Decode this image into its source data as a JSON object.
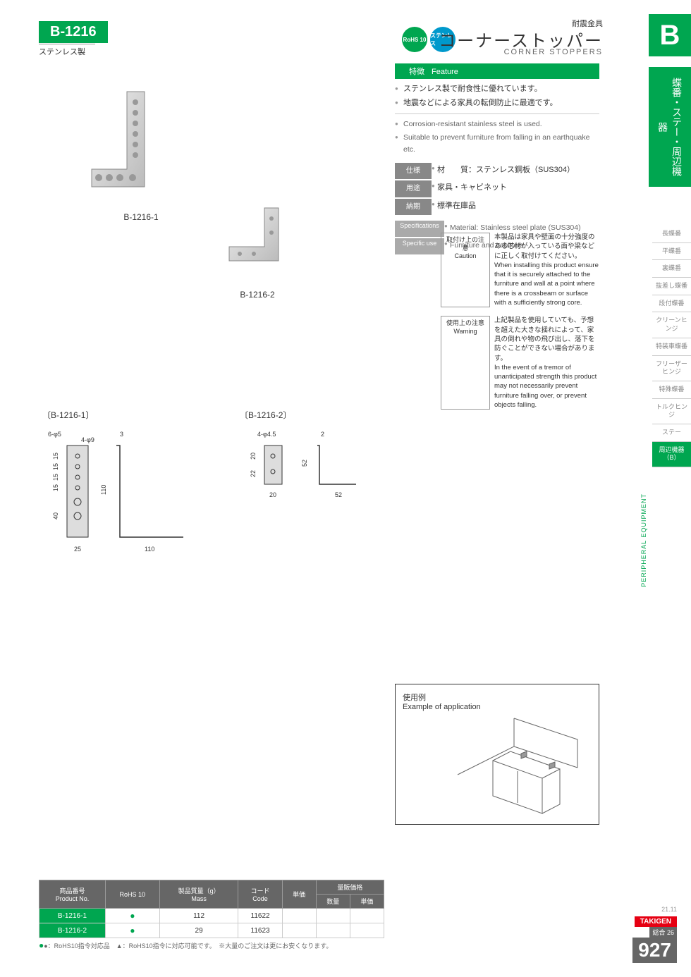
{
  "header": {
    "code": "B-1216",
    "sub": "ステンレス製",
    "category": "耐震金具",
    "title_jp": "コーナーストッパー",
    "title_en": "CORNER STOPPERS",
    "badge_rohs": "RoHS 10",
    "badge_stn": "ステンレス"
  },
  "side": {
    "tab": "B",
    "label": "蝶番・ステー・周辺機器",
    "nav": [
      "長蝶番",
      "平蝶番",
      "裏蝶番",
      "抜差し蝶番",
      "段付蝶番",
      "クリーンヒンジ",
      "特装車蝶番",
      "フリーザーヒンジ",
      "特殊蝶番",
      "トルクヒンジ",
      "ステー",
      "周辺機器（B）"
    ],
    "nav_active": 11,
    "vert": "PERIPHERAL EQUIPMENT"
  },
  "feature": {
    "hdr_jp": "特徴",
    "hdr_en": "Feature",
    "bullets_jp": [
      "ステンレス製で耐食性に優れています。",
      "地震などによる家具の転倒防止に最適です。"
    ],
    "bullets_en": [
      "Corrosion-resistant stainless steel is used.",
      "Suitable to prevent furniture from falling in an earthquake etc."
    ]
  },
  "spec": {
    "rows": [
      {
        "lbl": "仕様",
        "val": "材　　質：ステンレス鋼板（SUS304）"
      },
      {
        "lbl": "用途",
        "val": "家具・キャビネット"
      },
      {
        "lbl": "納期",
        "val": "標準在庫品"
      }
    ],
    "rows_en": [
      {
        "lbl": "Specifications",
        "val": "Material: Stainless steel plate (SUS304)"
      },
      {
        "lbl": "Specific use",
        "val": "Furniture and cabinets"
      }
    ]
  },
  "products": {
    "p1": "B-1216-1",
    "p2": "B-1216-2"
  },
  "caution": {
    "c1_lbl": "取付け上の注意\nCaution",
    "c1_jp": "本製品は家具や壁面の十分強度のある芯材が入っている面や梁などに正しく取付けてください。",
    "c1_en": "When installing this product ensure that it is securely attached to the furniture and wall at a point where there is a crossbeam or surface with a sufficiently strong core.",
    "c2_lbl": "使用上の注意\nWarning",
    "c2_jp": "上記製品を使用していても、予想を超えた大きな揺れによって、家具の倒れや物の飛び出し、落下を防ぐことができない場合があります。",
    "c2_en": "In the event of a tremor of unanticipated strength this product may not necessarily prevent furniture falling over, or prevent objects falling."
  },
  "drawings": {
    "d1_title": "〔B-1216-1〕",
    "d2_title": "〔B-1216-2〕",
    "d1": {
      "holes1": "6-φ5",
      "holes2": "4-φ9",
      "t": "3",
      "h": "110",
      "w": "110",
      "bw": "25",
      "sp": [
        "15",
        "15",
        "15",
        "15",
        "40"
      ]
    },
    "d2": {
      "holes": "4-φ4.5",
      "t": "2",
      "h": "52",
      "w": "52",
      "bw": "20",
      "sp": [
        "20",
        "22"
      ]
    }
  },
  "example": {
    "title_jp": "使用例",
    "title_en": "Example of application"
  },
  "table": {
    "headers": [
      "商品番号\nProduct No.",
      "RoHS 10",
      "製品質量（g）\nMass",
      "コード\nCode",
      "単価",
      "数量",
      "単価"
    ],
    "header_group": "量販価格",
    "rows": [
      {
        "code": "B-1216-1",
        "rohs": "●",
        "mass": "112",
        "pcode": "11622",
        "price": "",
        "qty": "",
        "bprice": ""
      },
      {
        "code": "B-1216-2",
        "rohs": "●",
        "mass": "29",
        "pcode": "11623",
        "price": "",
        "qty": "",
        "bprice": ""
      }
    ],
    "note1": "●：RoHS10指令対応品　▲：RoHS10指令に対応可能です。",
    "note2": "※大量のご注文は更にお安くなります。"
  },
  "footer": {
    "date": "21.11",
    "brand": "TAKIGEN",
    "cat": "総合 26",
    "page": "927"
  },
  "colors": {
    "green": "#00a650",
    "red": "#e60012",
    "gray": "#666"
  }
}
